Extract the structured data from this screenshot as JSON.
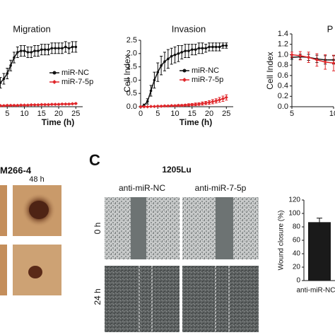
{
  "chart_data": [
    {
      "type": "line",
      "title": "Migration",
      "x_label": "Time (h)",
      "x": [
        3,
        4,
        5,
        6,
        7,
        8,
        9,
        10,
        11,
        12,
        13,
        14,
        15,
        16,
        17,
        18,
        19,
        20,
        21,
        22,
        23,
        24,
        25
      ],
      "xlim": [
        0,
        27
      ],
      "xticks": [
        5,
        10,
        15,
        20,
        25
      ],
      "ylim": [
        0,
        2.5
      ],
      "series": [
        {
          "name": "miR-NC",
          "color": "#111111",
          "marker": "circle",
          "values": [
            0.9,
            1.05,
            1.25,
            1.55,
            1.85,
            2.05,
            2.1,
            2.1,
            2.05,
            2.05,
            2.1,
            2.1,
            2.15,
            2.15,
            2.15,
            2.2,
            2.2,
            2.2,
            2.2,
            2.25,
            2.2,
            2.25,
            2.25
          ],
          "errors": [
            0.2,
            0.2,
            0.2,
            0.2,
            0.2,
            0.2,
            0.2,
            0.2,
            0.2,
            0.2,
            0.2,
            0.2,
            0.2,
            0.2,
            0.2,
            0.2,
            0.2,
            0.2,
            0.2,
            0.2,
            0.2,
            0.2,
            0.2
          ]
        },
        {
          "name": "miR-7-5p",
          "color": "#e0262a",
          "marker": "diamond",
          "values": [
            0.04,
            0.04,
            0.05,
            0.05,
            0.05,
            0.05,
            0.06,
            0.06,
            0.06,
            0.07,
            0.07,
            0.07,
            0.08,
            0.08,
            0.08,
            0.09,
            0.09,
            0.09,
            0.1,
            0.1,
            0.1,
            0.11,
            0.12
          ],
          "errors": [
            0.02,
            0.02,
            0.02,
            0.02,
            0.02,
            0.02,
            0.02,
            0.02,
            0.02,
            0.02,
            0.02,
            0.02,
            0.02,
            0.02,
            0.02,
            0.02,
            0.02,
            0.02,
            0.02,
            0.02,
            0.02,
            0.02,
            0.02
          ]
        }
      ]
    },
    {
      "type": "line",
      "title": "Invasion",
      "x_label": "Time (h)",
      "y_label": "Cell Index",
      "x": [
        0,
        1,
        2,
        3,
        4,
        5,
        6,
        7,
        8,
        9,
        10,
        11,
        12,
        13,
        14,
        15,
        16,
        17,
        18,
        19,
        20,
        21,
        22,
        23,
        24,
        25
      ],
      "xlim": [
        0,
        27
      ],
      "xticks": [
        0,
        5,
        10,
        15,
        20,
        25
      ],
      "ylim": [
        0,
        2.5
      ],
      "yticks": [
        {
          "value": 0,
          "label": "0.0"
        },
        0.5,
        {
          "value": 1,
          "label": "1.0"
        },
        1.5,
        {
          "value": 2,
          "label": "2.0"
        },
        2.5
      ],
      "series": [
        {
          "name": "miR-NC",
          "color": "#111111",
          "marker": "circle",
          "values": [
            0,
            0.05,
            0.2,
            0.6,
            1.0,
            1.3,
            1.55,
            1.7,
            1.8,
            1.9,
            1.95,
            2.0,
            2.05,
            2.1,
            2.1,
            2.15,
            2.15,
            2.2,
            2.2,
            2.2,
            2.25,
            2.25,
            2.25,
            2.25,
            2.3,
            2.3
          ],
          "errors": [
            0.02,
            0.05,
            0.1,
            0.2,
            0.3,
            0.35,
            0.35,
            0.35,
            0.35,
            0.3,
            0.3,
            0.3,
            0.25,
            0.25,
            0.25,
            0.2,
            0.2,
            0.2,
            0.2,
            0.15,
            0.15,
            0.15,
            0.15,
            0.15,
            0.1,
            0.1
          ]
        },
        {
          "name": "miR-7-5p",
          "color": "#e0262a",
          "marker": "diamond",
          "values": [
            0,
            0,
            0,
            0.01,
            0.01,
            0.02,
            0.02,
            0.03,
            0.03,
            0.04,
            0.04,
            0.05,
            0.05,
            0.06,
            0.07,
            0.08,
            0.09,
            0.1,
            0.12,
            0.14,
            0.16,
            0.19,
            0.22,
            0.26,
            0.3,
            0.35
          ],
          "errors": [
            0.01,
            0.01,
            0.01,
            0.01,
            0.01,
            0.01,
            0.02,
            0.02,
            0.02,
            0.02,
            0.02,
            0.03,
            0.03,
            0.03,
            0.04,
            0.04,
            0.05,
            0.05,
            0.06,
            0.06,
            0.07,
            0.08,
            0.08,
            0.09,
            0.1,
            0.1
          ]
        }
      ]
    },
    {
      "type": "line",
      "title": "P",
      "y_label": "Cell Index",
      "x": [
        5,
        6,
        7,
        8,
        9,
        10
      ],
      "xlim": [
        5,
        10
      ],
      "xticks": [
        5,
        10
      ],
      "ylim": [
        0,
        1.4
      ],
      "yticks": [
        {
          "value": 0,
          "label": "0.0"
        },
        0.2,
        0.4,
        0.6,
        0.8,
        {
          "value": 1,
          "label": "1.0"
        },
        1.2,
        1.4
      ],
      "series": [
        {
          "color": "#111111",
          "marker": "circle",
          "values": [
            0.95,
            0.96,
            0.95,
            0.92,
            0.9,
            0.9
          ],
          "errors": [
            0.04,
            0.05,
            0.06,
            0.07,
            0.08,
            0.08
          ]
        },
        {
          "color": "#e0262a",
          "marker": "diamond",
          "values": [
            1.0,
            0.98,
            0.95,
            0.9,
            0.86,
            0.84
          ],
          "errors": [
            0.05,
            0.08,
            0.1,
            0.12,
            0.14,
            0.15
          ]
        }
      ]
    },
    {
      "type": "bar",
      "y_label": "Wound closure (%)",
      "categories": [
        "anti-miR-NC"
      ],
      "values": [
        87
      ],
      "errors": [
        6
      ],
      "color": "#1a1a1a",
      "ylim": [
        0,
        120
      ],
      "yticks": [
        0,
        20,
        40,
        60,
        80,
        100,
        120
      ]
    }
  ],
  "panels": {
    "cell_line_left": "M266-4",
    "time_left": "48 h",
    "panel_letter": "C",
    "cell_line_right": "1205Lu",
    "col_1": "anti-miR-NC",
    "col_2": "anti-miR-7-5p",
    "row_1": "0 h",
    "row_2": "24 h"
  }
}
